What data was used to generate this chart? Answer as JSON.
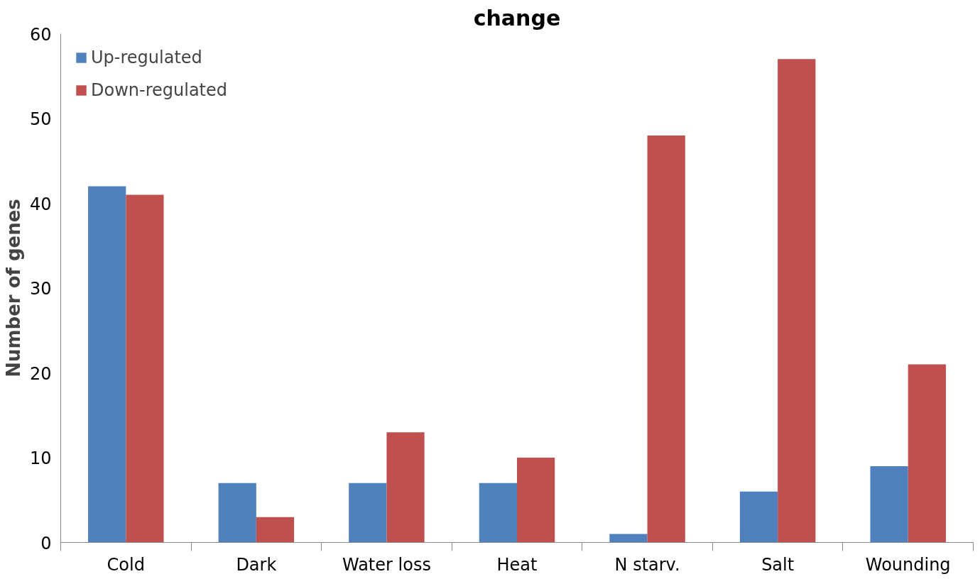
{
  "chart_data": {
    "type": "bar",
    "title": "change",
    "ylabel": "Number of genes",
    "categories": [
      "Cold",
      "Dark",
      "Water loss",
      "Heat",
      "N starv.",
      "Salt",
      "Wounding"
    ],
    "series": [
      {
        "name": "Up-regulated",
        "color": "#4f81bd",
        "values": [
          42,
          7,
          7,
          7,
          1,
          6,
          9
        ]
      },
      {
        "name": "Down-regulated",
        "color": "#c0504d",
        "values": [
          41,
          3,
          13,
          10,
          48,
          57,
          21
        ]
      }
    ],
    "ylim": [
      0,
      60
    ],
    "yticks": [
      0,
      10,
      20,
      30,
      40,
      50,
      60
    ],
    "grid": false,
    "legend": "top left"
  }
}
